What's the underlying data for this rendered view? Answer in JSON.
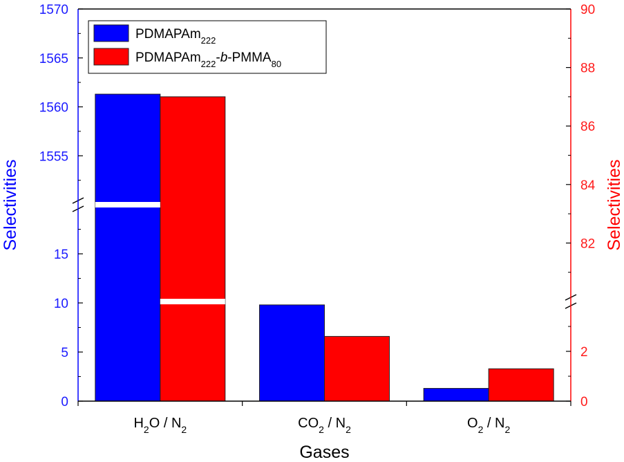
{
  "chart_data": {
    "type": "bar",
    "categories": [
      "H2O / N2",
      "CO2 / N2",
      "O2 / N2"
    ],
    "category_display": [
      {
        "base1": "H",
        "sub1": "2",
        "rest": "O / N",
        "sub2": "2"
      },
      {
        "base1": "CO",
        "sub1": "2",
        "rest": " / N",
        "sub2": "2"
      },
      {
        "base1": "O",
        "sub1": "2",
        "rest": " / N",
        "sub2": "2"
      }
    ],
    "series": [
      {
        "name": "PDMAPAm222",
        "legend": {
          "main": "PDMAPAm",
          "sub": "222",
          "italic": "",
          "tail": "",
          "tail_sub": ""
        },
        "axis": "left",
        "color": "#0000ff",
        "values": [
          1561.3,
          9.8,
          1.3
        ]
      },
      {
        "name": "PDMAPAm222-b-PMMA80",
        "legend": {
          "main": "PDMAPAm",
          "sub": "222",
          "italic": "b",
          "tail": "-PMMA",
          "tail_sub": "80"
        },
        "axis": "right",
        "color": "#ff0000",
        "values": [
          87.0,
          2.6,
          1.3
        ]
      }
    ],
    "xlabel": "Gases",
    "ylabel_left": "Selectivities",
    "ylabel_right": "Selectivities",
    "left_axis": {
      "color": "#0000ff",
      "lower_range": [
        0,
        20
      ],
      "upper_range": [
        1550,
        1570
      ],
      "lower_ticks": [
        "0",
        "5",
        "10",
        "15"
      ],
      "upper_ticks": [
        "1555",
        "1560",
        "1565",
        "1570"
      ]
    },
    "right_axis": {
      "color": "#ff0000",
      "lower_range": [
        0,
        4
      ],
      "upper_range": [
        80,
        90
      ],
      "lower_ticks": [
        "0",
        "2"
      ],
      "upper_ticks": [
        "82",
        "84",
        "86",
        "88",
        "90"
      ]
    },
    "grid": false,
    "legend_position": "top-left"
  }
}
